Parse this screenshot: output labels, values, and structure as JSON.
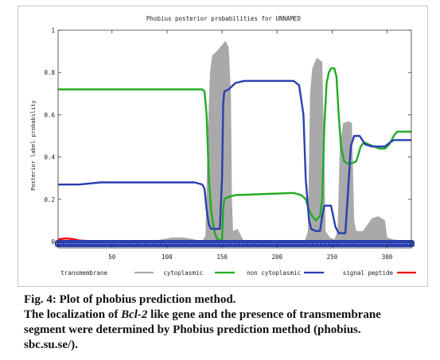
{
  "chart_data": {
    "type": "line",
    "title": "Phobius posterior probabilities for UNNAMED",
    "ylabel": "Posterior label probability",
    "xlabel": "",
    "xlim": [
      1,
      322
    ],
    "ylim": [
      0,
      1
    ],
    "xticks": [
      50,
      100,
      150,
      200,
      250,
      300
    ],
    "yticks": [
      0,
      0.2,
      0.4,
      0.6,
      0.8,
      1
    ],
    "ytick_labels": [
      "0",
      "0.2",
      "0.4",
      "0.6",
      "0.8",
      "1"
    ],
    "legend_position": "bottom",
    "grid": false,
    "transmembrane_area": {
      "name": "transmembrane",
      "color": "#a9a9a9",
      "points": [
        [
          1,
          0
        ],
        [
          85,
          0
        ],
        [
          95,
          0.01
        ],
        [
          105,
          0.02
        ],
        [
          115,
          0.02
        ],
        [
          125,
          0.01
        ],
        [
          132,
          0
        ],
        [
          135,
          0.03
        ],
        [
          137,
          0.5
        ],
        [
          139,
          0.8
        ],
        [
          141,
          0.88
        ],
        [
          145,
          0.9
        ],
        [
          150,
          0.93
        ],
        [
          153,
          0.95
        ],
        [
          156,
          0.92
        ],
        [
          158,
          0.7
        ],
        [
          159,
          0.2
        ],
        [
          160,
          0.05
        ],
        [
          164,
          0.06
        ],
        [
          168,
          0.02
        ],
        [
          170,
          0
        ],
        [
          225,
          0
        ],
        [
          228,
          0.05
        ],
        [
          230,
          0.7
        ],
        [
          232,
          0.82
        ],
        [
          236,
          0.87
        ],
        [
          241,
          0.85
        ],
        [
          243,
          0.4
        ],
        [
          244,
          0.05
        ],
        [
          248,
          0.02
        ],
        [
          252,
          0.01
        ],
        [
          255,
          0.05
        ],
        [
          257,
          0.45
        ],
        [
          260,
          0.56
        ],
        [
          265,
          0.57
        ],
        [
          268,
          0.56
        ],
        [
          270,
          0.1
        ],
        [
          272,
          0.05
        ],
        [
          278,
          0.05
        ],
        [
          282,
          0.08
        ],
        [
          286,
          0.11
        ],
        [
          292,
          0.12
        ],
        [
          298,
          0.1
        ],
        [
          300,
          0.02
        ],
        [
          305,
          0.01
        ],
        [
          322,
          0
        ]
      ]
    },
    "series": [
      {
        "name": "cytoplasmic",
        "color": "#22aa22",
        "points": [
          [
            1,
            0.72
          ],
          [
            132,
            0.72
          ],
          [
            134,
            0.71
          ],
          [
            136,
            0.6
          ],
          [
            138,
            0.3
          ],
          [
            140,
            0.15
          ],
          [
            142,
            0.08
          ],
          [
            144,
            0.03
          ],
          [
            146,
            0.01
          ],
          [
            148,
            0.005
          ],
          [
            150,
            0.01
          ],
          [
            151,
            0.15
          ],
          [
            152,
            0.2
          ],
          [
            155,
            0.21
          ],
          [
            162,
            0.22
          ],
          [
            215,
            0.23
          ],
          [
            222,
            0.22
          ],
          [
            226,
            0.2
          ],
          [
            229,
            0.15
          ],
          [
            232,
            0.12
          ],
          [
            235,
            0.1
          ],
          [
            239,
            0.12
          ],
          [
            241,
            0.2
          ],
          [
            243,
            0.55
          ],
          [
            245,
            0.75
          ],
          [
            247,
            0.8
          ],
          [
            249,
            0.82
          ],
          [
            252,
            0.82
          ],
          [
            254,
            0.78
          ],
          [
            256,
            0.6
          ],
          [
            258,
            0.45
          ],
          [
            261,
            0.38
          ],
          [
            264,
            0.37
          ],
          [
            268,
            0.37
          ],
          [
            272,
            0.38
          ],
          [
            276,
            0.45
          ],
          [
            279,
            0.47
          ],
          [
            283,
            0.46
          ],
          [
            288,
            0.45
          ],
          [
            293,
            0.44
          ],
          [
            298,
            0.44
          ],
          [
            302,
            0.46
          ],
          [
            306,
            0.5
          ],
          [
            309,
            0.52
          ],
          [
            322,
            0.52
          ]
        ]
      },
      {
        "name": "non cytoplasmic",
        "color": "#2a3fb0",
        "points": [
          [
            1,
            0.27
          ],
          [
            20,
            0.27
          ],
          [
            40,
            0.28
          ],
          [
            90,
            0.28
          ],
          [
            125,
            0.28
          ],
          [
            132,
            0.27
          ],
          [
            134,
            0.25
          ],
          [
            136,
            0.15
          ],
          [
            138,
            0.08
          ],
          [
            140,
            0.06
          ],
          [
            148,
            0.06
          ],
          [
            150,
            0.3
          ],
          [
            151,
            0.65
          ],
          [
            152,
            0.71
          ],
          [
            156,
            0.72
          ],
          [
            162,
            0.75
          ],
          [
            170,
            0.76
          ],
          [
            215,
            0.76
          ],
          [
            220,
            0.74
          ],
          [
            224,
            0.6
          ],
          [
            226,
            0.3
          ],
          [
            229,
            0.1
          ],
          [
            231,
            0.06
          ],
          [
            235,
            0.05
          ],
          [
            239,
            0.05
          ],
          [
            241,
            0.12
          ],
          [
            243,
            0.17
          ],
          [
            246,
            0.17
          ],
          [
            249,
            0.17
          ],
          [
            251,
            0.12
          ],
          [
            253,
            0.07
          ],
          [
            256,
            0.04
          ],
          [
            258,
            0.04
          ],
          [
            262,
            0.04
          ],
          [
            264,
            0.2
          ],
          [
            267,
            0.45
          ],
          [
            270,
            0.5
          ],
          [
            275,
            0.5
          ],
          [
            280,
            0.46
          ],
          [
            286,
            0.45
          ],
          [
            292,
            0.45
          ],
          [
            298,
            0.45
          ],
          [
            303,
            0.47
          ],
          [
            306,
            0.48
          ],
          [
            322,
            0.48
          ]
        ]
      },
      {
        "name": "signal peptide",
        "color": "#ee1111",
        "points": [
          [
            1,
            0.01
          ],
          [
            8,
            0.015
          ],
          [
            14,
            0.012
          ],
          [
            20,
            0.005
          ],
          [
            30,
            0.002
          ],
          [
            322,
            0.002
          ]
        ]
      }
    ],
    "legend": [
      {
        "name": "transmembrane",
        "color": "#a9a9a9"
      },
      {
        "name": "cytoplasmic",
        "color": "#22aa22"
      },
      {
        "name": "non cytoplasmic",
        "color": "#2a3fb0"
      },
      {
        "name": "signal peptide",
        "color": "#ee1111"
      }
    ],
    "sequence_bar_color": "#2a3fb0"
  },
  "caption": {
    "line1": "Fig. 4: Plot of phobius prediction method.",
    "line2_a": "The localization of ",
    "line2_gene": "Bcl-2",
    "line2_b": " like gene and the presence of transmembrane",
    "line3": "segment were determined by Phobius prediction method (phobius.",
    "line4": "sbc.su.se/)."
  }
}
